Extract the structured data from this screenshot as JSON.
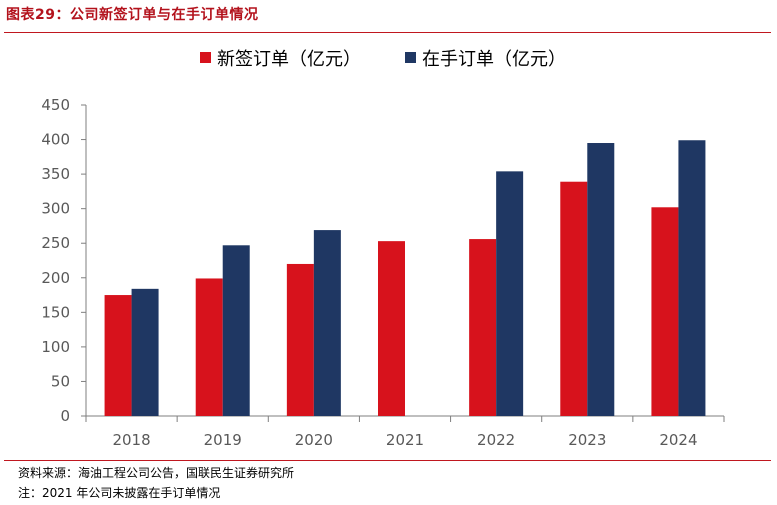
{
  "figure": {
    "title": "图表29：公司新签订单与在手订单情况",
    "source": "资料来源：海油工程公司公告，国联民生证券研究所",
    "note": "注：2021 年公司未披露在手订单情况"
  },
  "colors": {
    "accent": "#c0171f",
    "new_orders": "#d7121c",
    "backlog": "#1f3763"
  },
  "chart_data": {
    "type": "bar",
    "title": "",
    "xlabel": "",
    "ylabel": "",
    "categories": [
      "2018",
      "2019",
      "2020",
      "2021",
      "2022",
      "2023",
      "2024"
    ],
    "series": [
      {
        "name": "新签订单（亿元）",
        "values": [
          175,
          199,
          220,
          253,
          256,
          339,
          302
        ]
      },
      {
        "name": "在手订单（亿元）",
        "values": [
          184,
          247,
          269,
          null,
          354,
          395,
          399
        ]
      }
    ],
    "ylim": [
      0,
      450
    ],
    "yticks": [
      0,
      50,
      100,
      150,
      200,
      250,
      300,
      350,
      400,
      450
    ],
    "grid": false,
    "legend": "top-center"
  }
}
